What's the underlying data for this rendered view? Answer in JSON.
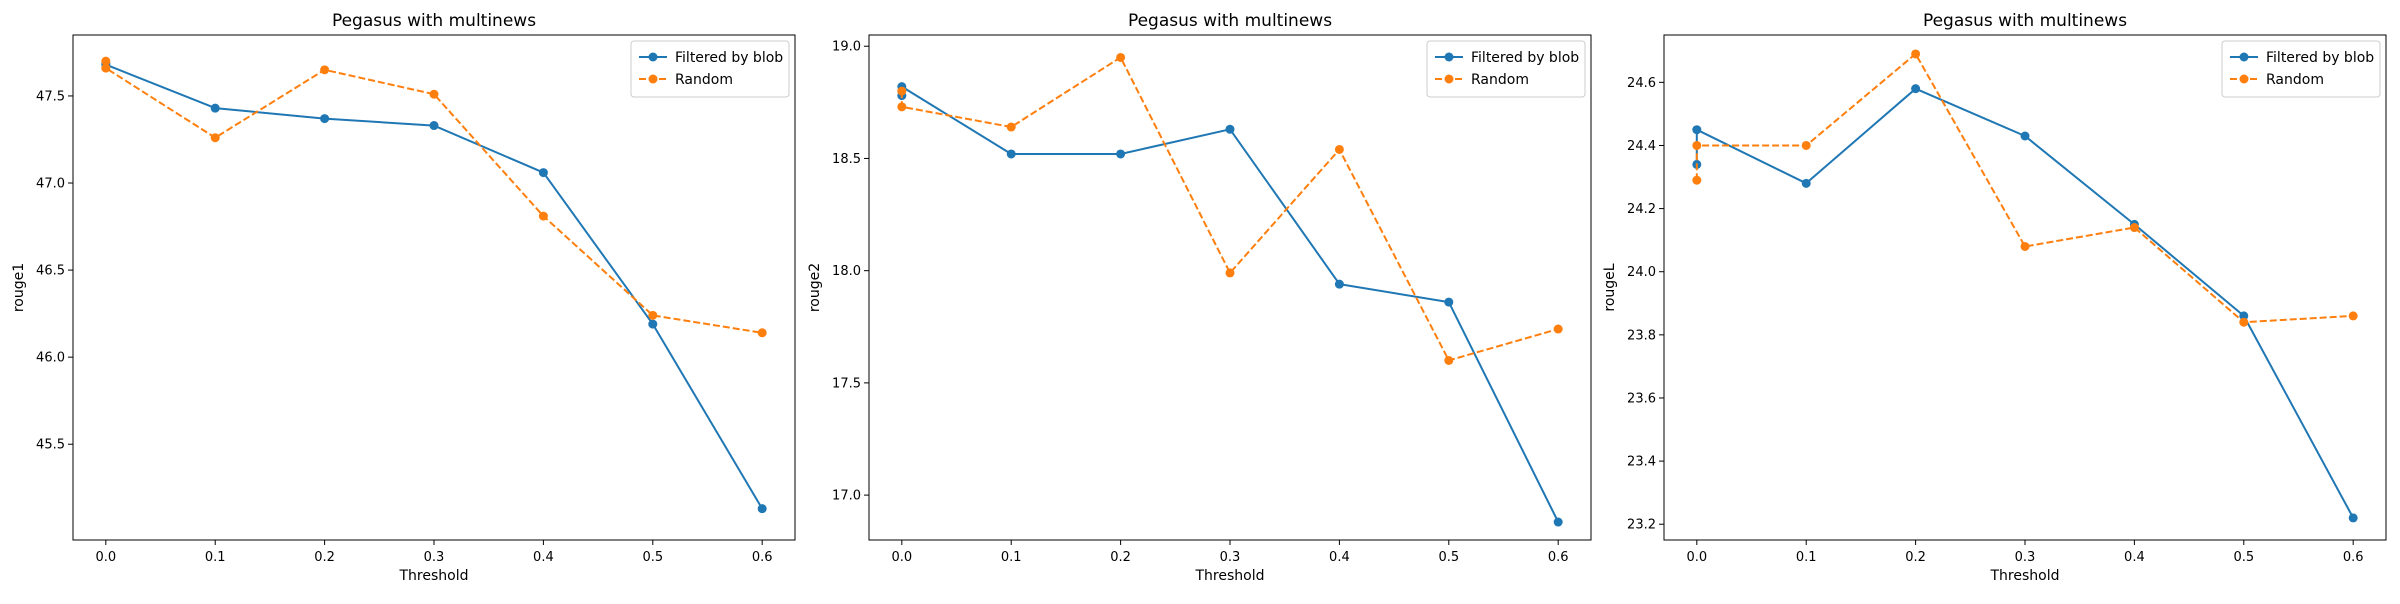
{
  "colors": {
    "series_1": "#1f77b4",
    "series_2": "#ff7f0e"
  },
  "chart_data": [
    {
      "type": "line",
      "title": "Pegasus with multinews",
      "xlabel": "Threshold",
      "ylabel": "rouge1",
      "xlim": [
        -0.03,
        0.63
      ],
      "ylim": [
        44.95,
        47.85
      ],
      "xticks": [
        0.0,
        0.1,
        0.2,
        0.3,
        0.4,
        0.5,
        0.6
      ],
      "xtick_labels": [
        "0.0",
        "0.1",
        "0.2",
        "0.3",
        "0.4",
        "0.5",
        "0.6"
      ],
      "yticks": [
        45.5,
        46.0,
        46.5,
        47.0,
        47.5
      ],
      "ytick_labels": [
        "45.5",
        "46.0",
        "46.5",
        "47.0",
        "47.5"
      ],
      "grid": false,
      "legend_position": "top-right",
      "series": [
        {
          "name": "Filtered by blob",
          "line_style": "solid",
          "x": [
            0.0,
            0.0,
            0.1,
            0.2,
            0.3,
            0.4,
            0.5,
            0.6
          ],
          "y": [
            47.69,
            47.68,
            47.43,
            47.37,
            47.33,
            47.06,
            46.19,
            45.13
          ]
        },
        {
          "name": "Random",
          "line_style": "dashed",
          "x": [
            0.0,
            0.0,
            0.1,
            0.2,
            0.3,
            0.4,
            0.5,
            0.6
          ],
          "y": [
            47.7,
            47.66,
            47.26,
            47.65,
            47.51,
            46.81,
            46.24,
            46.14
          ]
        }
      ]
    },
    {
      "type": "line",
      "title": "Pegasus with multinews",
      "xlabel": "Threshold",
      "ylabel": "rouge2",
      "xlim": [
        -0.03,
        0.63
      ],
      "ylim": [
        16.8,
        19.05
      ],
      "xticks": [
        0.0,
        0.1,
        0.2,
        0.3,
        0.4,
        0.5,
        0.6
      ],
      "xtick_labels": [
        "0.0",
        "0.1",
        "0.2",
        "0.3",
        "0.4",
        "0.5",
        "0.6"
      ],
      "yticks": [
        17.0,
        17.5,
        18.0,
        18.5,
        19.0
      ],
      "ytick_labels": [
        "17.0",
        "17.5",
        "18.0",
        "18.5",
        "19.0"
      ],
      "grid": false,
      "legend_position": "top-right",
      "series": [
        {
          "name": "Filtered by blob",
          "line_style": "solid",
          "x": [
            0.0,
            0.0,
            0.1,
            0.2,
            0.3,
            0.4,
            0.5,
            0.6
          ],
          "y": [
            18.78,
            18.82,
            18.52,
            18.52,
            18.63,
            17.94,
            17.86,
            16.88
          ]
        },
        {
          "name": "Random",
          "line_style": "dashed",
          "x": [
            0.0,
            0.0,
            0.1,
            0.2,
            0.3,
            0.4,
            0.5,
            0.6
          ],
          "y": [
            18.8,
            18.73,
            18.64,
            18.95,
            17.99,
            18.54,
            17.6,
            17.74
          ]
        }
      ]
    },
    {
      "type": "line",
      "title": "Pegasus with multinews",
      "xlabel": "Threshold",
      "ylabel": "rougeL",
      "xlim": [
        -0.03,
        0.63
      ],
      "ylim": [
        23.15,
        24.75
      ],
      "xticks": [
        0.0,
        0.1,
        0.2,
        0.3,
        0.4,
        0.5,
        0.6
      ],
      "xtick_labels": [
        "0.0",
        "0.1",
        "0.2",
        "0.3",
        "0.4",
        "0.5",
        "0.6"
      ],
      "yticks": [
        23.2,
        23.4,
        23.6,
        23.8,
        24.0,
        24.2,
        24.4,
        24.6
      ],
      "ytick_labels": [
        "23.2",
        "23.4",
        "23.6",
        "23.8",
        "24.0",
        "24.2",
        "24.4",
        "24.6"
      ],
      "grid": false,
      "legend_position": "top-right",
      "series": [
        {
          "name": "Filtered by blob",
          "line_style": "solid",
          "x": [
            0.0,
            0.0,
            0.1,
            0.2,
            0.3,
            0.4,
            0.5,
            0.6
          ],
          "y": [
            24.34,
            24.45,
            24.28,
            24.58,
            24.43,
            24.15,
            23.86,
            23.22
          ]
        },
        {
          "name": "Random",
          "line_style": "dashed",
          "x": [
            0.0,
            0.0,
            0.1,
            0.2,
            0.3,
            0.4,
            0.5,
            0.6
          ],
          "y": [
            24.29,
            24.4,
            24.4,
            24.69,
            24.08,
            24.14,
            23.84,
            23.86
          ]
        }
      ]
    }
  ]
}
